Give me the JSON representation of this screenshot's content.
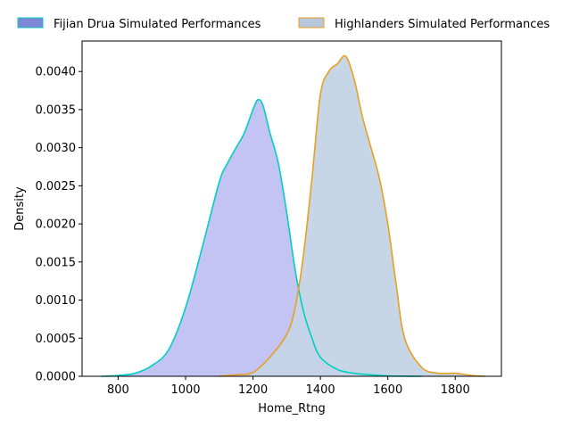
{
  "chart_data": {
    "type": "area",
    "xlabel": "Home_Rtng",
    "ylabel": "Density",
    "xlim": [
      693,
      1937
    ],
    "ylim": [
      0,
      0.0044
    ],
    "x_ticks": [
      800,
      1000,
      1200,
      1400,
      1600,
      1800
    ],
    "y_ticks": [
      0.0,
      0.0005,
      0.001,
      0.0015,
      0.002,
      0.0025,
      0.003,
      0.0035,
      0.004
    ],
    "y_tick_labels": [
      "0.0000",
      "0.0005",
      "0.0010",
      "0.0015",
      "0.0020",
      "0.0025",
      "0.0030",
      "0.0035",
      "0.0040"
    ],
    "grid": false,
    "legend_position": "top, outside plot, two columns",
    "series": [
      {
        "name": "Fijian Drua Simulated Performances",
        "fill_color": "#8181e8",
        "line_color": "#00cfc0",
        "legend_fill": "#7f86d6",
        "x": [
          750,
          800,
          850,
          900,
          950,
          1000,
          1050,
          1100,
          1125,
          1150,
          1175,
          1200,
          1215,
          1230,
          1250,
          1275,
          1300,
          1325,
          1350,
          1375,
          1400,
          1450,
          1500,
          1550,
          1600,
          1650,
          1700
        ],
        "y": [
          0.0,
          1e-05,
          4e-05,
          0.00014,
          0.00035,
          0.0009,
          0.0017,
          0.00255,
          0.0028,
          0.003,
          0.0032,
          0.0035,
          0.00363,
          0.00355,
          0.0032,
          0.0028,
          0.00215,
          0.0014,
          0.00085,
          0.0005,
          0.00025,
          9e-05,
          4e-05,
          2e-05,
          5e-06,
          2e-06,
          0.0
        ]
      },
      {
        "name": "Highlanders Simulated Performances",
        "fill_color": "#c4d4e6",
        "line_color": "#e8a020",
        "legend_fill": "#b8c8dc",
        "x": [
          1100,
          1150,
          1200,
          1250,
          1300,
          1325,
          1350,
          1375,
          1400,
          1425,
          1450,
          1475,
          1500,
          1525,
          1550,
          1575,
          1600,
          1625,
          1650,
          1700,
          1750,
          1800,
          1850,
          1890
        ],
        "y": [
          0.0,
          2e-05,
          5e-05,
          0.00025,
          0.00055,
          0.0009,
          0.0016,
          0.0026,
          0.0037,
          0.004,
          0.0041,
          0.0042,
          0.0039,
          0.0034,
          0.003,
          0.0026,
          0.002,
          0.0012,
          0.0005,
          0.00012,
          4e-05,
          4e-05,
          1e-05,
          0.0
        ]
      }
    ]
  }
}
